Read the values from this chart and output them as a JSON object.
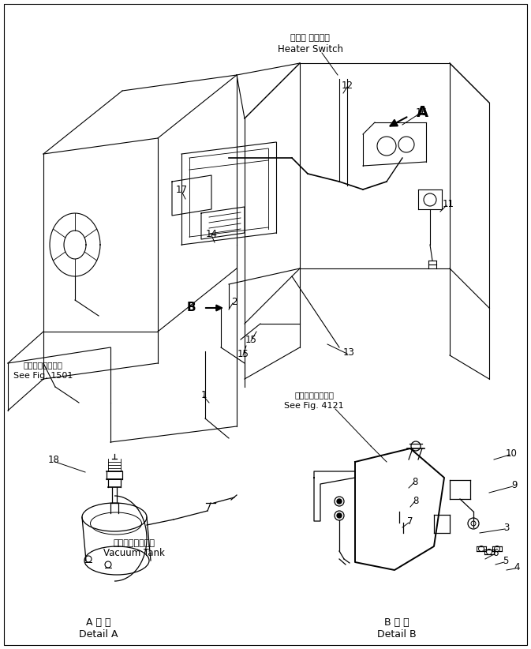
{
  "bg_color": "#ffffff",
  "line_color": "#000000",
  "labels": {
    "heater_switch_jp": "ヒータ スイッチ",
    "heater_switch_en": "Heater Switch",
    "vacuum_tank_jp": "バキュームタンク",
    "vacuum_tank_en": "Vacuum Tank",
    "detail_a_jp": "A 詳 細",
    "detail_a_en": "Detail A",
    "detail_b_jp": "B 詳 細",
    "detail_b_en": "Detail B",
    "see_fig_1501_jp": "第１５０１図参照",
    "see_fig_1501_en": "See Fig. 1501",
    "see_fig_4121_jp": "第４１２１図参照",
    "see_fig_4121_en": "See Fig. 4121",
    "letter_A": "A",
    "letter_B": "B"
  }
}
